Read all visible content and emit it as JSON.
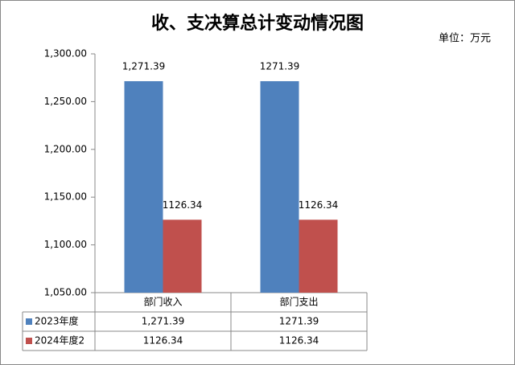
{
  "chart_data": {
    "type": "bar",
    "title": "收、支决算总计变动情况图",
    "unit": "单位：万元",
    "categories": [
      "部门收入",
      "部门支出"
    ],
    "series": [
      {
        "name": "2023年度",
        "color": "#4f81bd",
        "values": [
          1271.39,
          1271.39
        ],
        "value_labels": [
          "1,271.39",
          "1271.39"
        ]
      },
      {
        "name": "2024年度2",
        "color": "#c0504d",
        "values": [
          1126.34,
          1126.34
        ],
        "value_labels": [
          "1126.34",
          "1126.34"
        ]
      }
    ],
    "ylim": [
      1050,
      1300
    ],
    "yticks": [
      {
        "value": 1050,
        "label": "1,050.00"
      },
      {
        "value": 1100,
        "label": "1,100.00"
      },
      {
        "value": 1150,
        "label": "1,150.00"
      },
      {
        "value": 1200,
        "label": "1,200.00"
      },
      {
        "value": 1250,
        "label": "1,250.00"
      },
      {
        "value": 1300,
        "label": "1,300.00"
      }
    ],
    "grid": false
  }
}
